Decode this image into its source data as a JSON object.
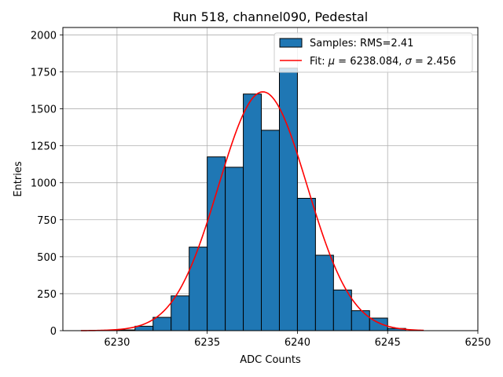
{
  "chart_data": {
    "type": "bar",
    "title": "Run 518, channel090, Pedestal",
    "xlabel": "ADC Counts",
    "ylabel": "Entries",
    "xlim": [
      6227,
      6250
    ],
    "ylim": [
      0,
      2050
    ],
    "xticks": [
      6230,
      6235,
      6240,
      6245,
      6250
    ],
    "yticks": [
      0,
      250,
      500,
      750,
      1000,
      1250,
      1500,
      1750,
      2000
    ],
    "grid": true,
    "legend_position": "top-right",
    "bins": {
      "edges": [
        6230,
        6231,
        6232,
        6233,
        6234,
        6235,
        6236,
        6237,
        6238,
        6239,
        6240,
        6241,
        6242,
        6243,
        6244,
        6245,
        6246
      ],
      "counts": [
        5,
        30,
        90,
        235,
        565,
        1175,
        1105,
        1600,
        1355,
        1775,
        895,
        510,
        275,
        135,
        85,
        15
      ]
    },
    "series": [
      {
        "name": "Samples: RMS=2.41",
        "kind": "histogram",
        "color": "#1f77b4"
      },
      {
        "name": "Fit: μ = 6238.084, σ = 2.456",
        "kind": "gaussian",
        "color": "#ff0000",
        "mu": 6238.084,
        "sigma": 2.456,
        "peak": 1615,
        "x_range": [
          6228,
          6247
        ]
      }
    ],
    "legend": {
      "histogram_label": "Samples: RMS=2.41",
      "fit_label_prefix": "Fit: ",
      "mu_symbol": "μ",
      "fit_mu_text": " = 6238.084, ",
      "sigma_symbol": "σ",
      "fit_sigma_text": " = 2.456"
    }
  }
}
